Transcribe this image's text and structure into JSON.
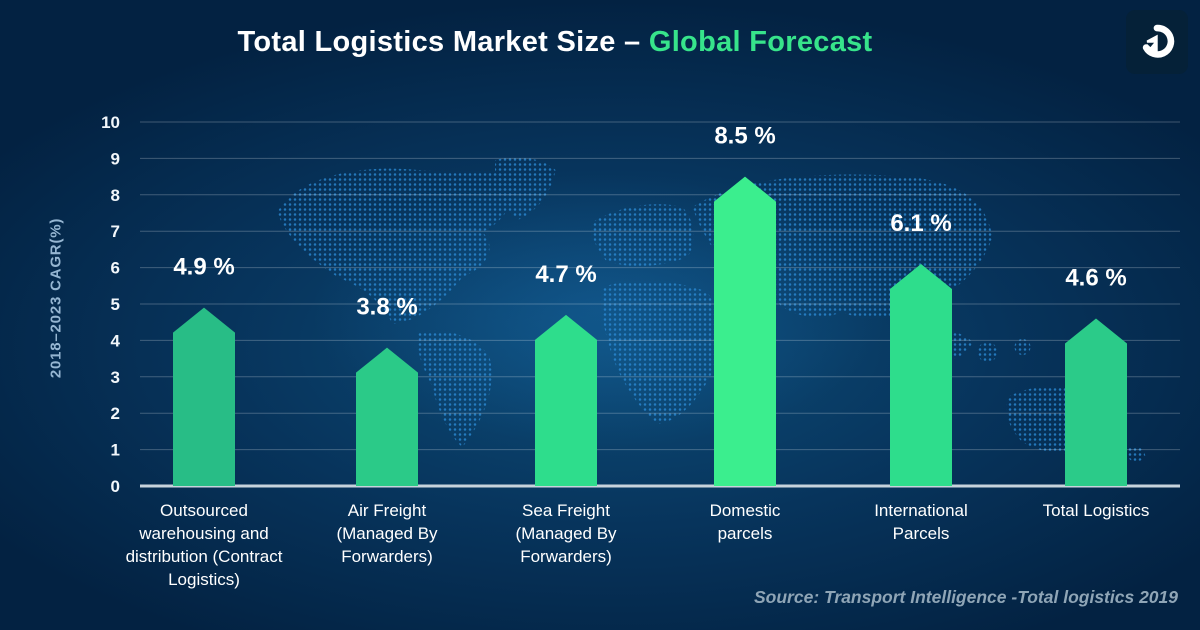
{
  "header": {
    "title_main": "Total Logistics Market Size – ",
    "title_accent": "Global Forecast"
  },
  "branding": {
    "logo_icon": "spartan-helmet-icon"
  },
  "chart_data": {
    "type": "bar",
    "title": "Total Logistics Market Size – Global Forecast",
    "xlabel": "",
    "ylabel": "2018–2023 CAGR(%)",
    "ylim": [
      0,
      10
    ],
    "ytick_step": 1,
    "grid": true,
    "legend": "none",
    "background": "dark navy with dotted world map watermark",
    "categories": [
      "Outsourced warehousing and distribution (Contract Logistics)",
      "Air Freight (Managed By Forwarders)",
      "Sea Freight (Managed By Forwarders)",
      "Domestic parcels",
      "International Parcels",
      "Total Logistics"
    ],
    "category_lines": [
      [
        "Outsourced",
        "warehousing and",
        "distribution (Contract",
        "Logistics)"
      ],
      [
        "Air Freight",
        "(Managed By",
        "Forwarders)"
      ],
      [
        "Sea Freight",
        "(Managed By",
        "Forwarders)"
      ],
      [
        "Domestic",
        "parcels"
      ],
      [
        "International",
        "Parcels"
      ],
      [
        "Total Logistics"
      ]
    ],
    "values": [
      4.9,
      3.8,
      4.7,
      8.5,
      6.1,
      4.6
    ],
    "labels": [
      "4.9 %",
      "3.8 %",
      "4.7 %",
      "8.5 %",
      "6.1 %",
      "4.6 %"
    ],
    "bar_colors": [
      "#28bd86",
      "#2bca88",
      "#2edd8c",
      "#3bee8e",
      "#2edd8c",
      "#2bcb89"
    ]
  },
  "footer": {
    "source": "Source: Transport Intelligence -Total logistics 2019"
  },
  "colors": {
    "accent_green": "#37e48b",
    "background_center": "#0d4c78",
    "background_edge": "#032242",
    "map_blue": "#2b8ad4",
    "axis_text": "#f2f7fb",
    "ylabel_color": "#96b6d2",
    "gridline": "rgba(255,255,255,0.24)",
    "baseline": "#c7d3dc",
    "value_label": "#ffffff",
    "source_text": "#8fa5b6"
  }
}
